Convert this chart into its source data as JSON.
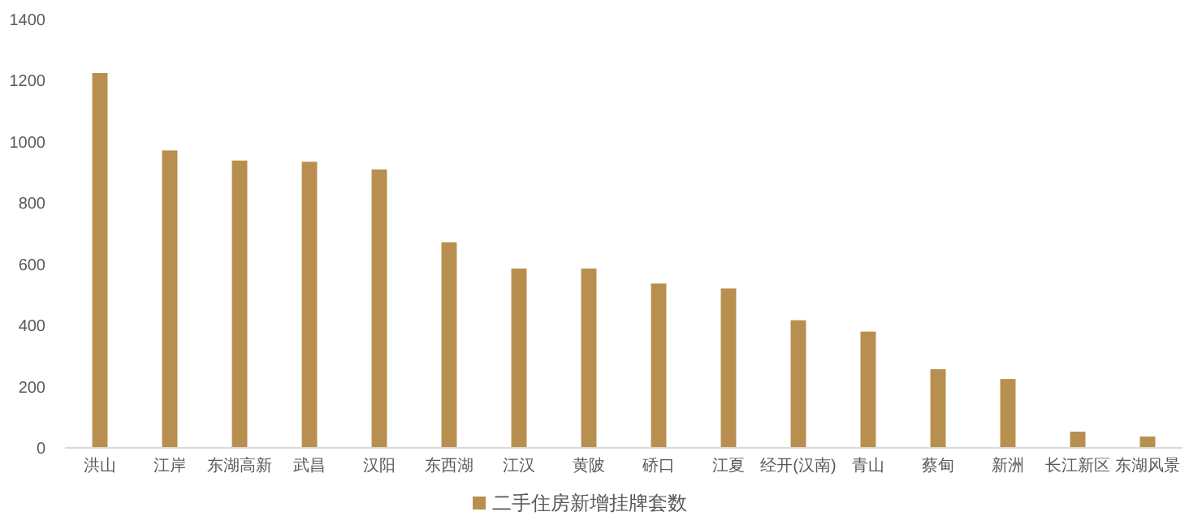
{
  "chart_data": {
    "type": "bar",
    "categories": [
      "洪山",
      "江岸",
      "东湖高新",
      "武昌",
      "汉阳",
      "东西湖",
      "江汉",
      "黄陂",
      "硚口",
      "江夏",
      "经开(汉南)",
      "青山",
      "蔡甸",
      "新洲",
      "长江新区",
      "东湖风景"
    ],
    "series": [
      {
        "name": "二手住房新增挂牌套数",
        "color": "#b88f4f",
        "values": [
          1225,
          972,
          939,
          935,
          910,
          672,
          586,
          586,
          537,
          521,
          417,
          380,
          257,
          225,
          53,
          37
        ]
      }
    ],
    "ylim": [
      0,
      1400
    ],
    "yticks": [
      0,
      200,
      400,
      600,
      800,
      1000,
      1200,
      1400
    ],
    "grid": false,
    "legend": "bottom"
  }
}
